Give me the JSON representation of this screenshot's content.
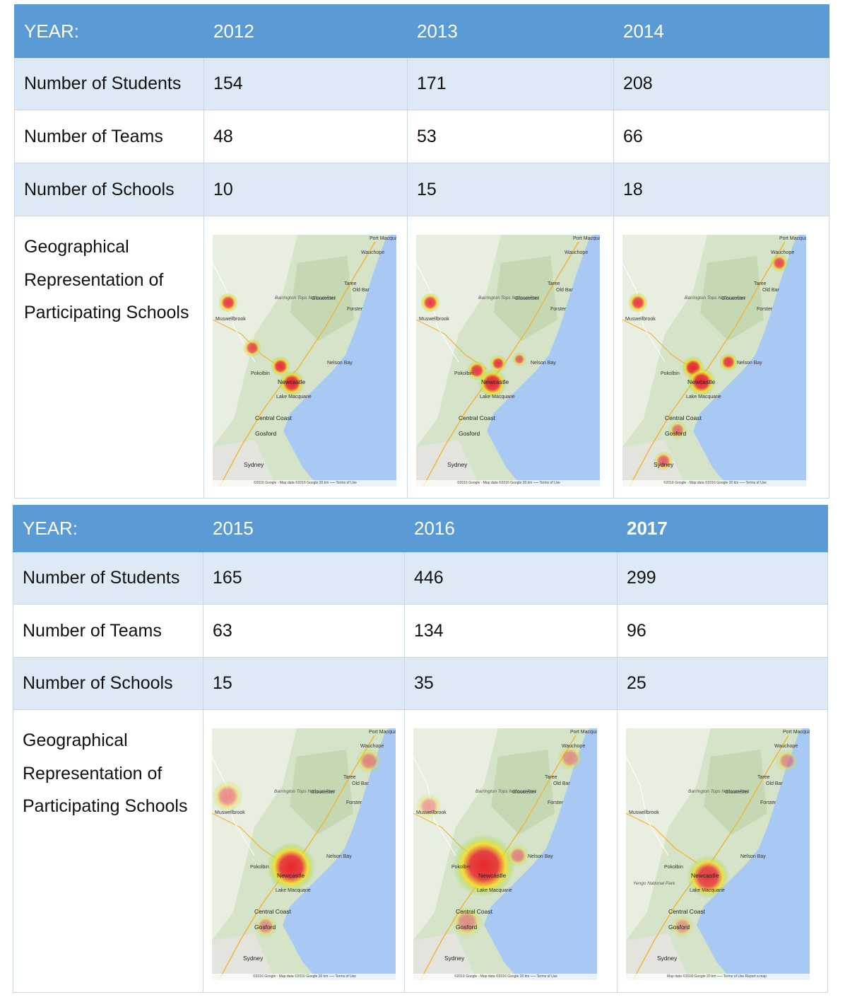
{
  "tables": [
    {
      "year_label": "YEAR:",
      "years": [
        "2012",
        "2013",
        "2014"
      ],
      "rows": [
        {
          "label": "Number of Students",
          "values": [
            "154",
            "171",
            "208"
          ]
        },
        {
          "label": "Number of Teams",
          "values": [
            "48",
            "53",
            "66"
          ]
        },
        {
          "label": "Number of Schools",
          "values": [
            "10",
            "15",
            "18"
          ]
        }
      ],
      "geo_label": "Geographical Representation of Participating Schools",
      "maps": [
        {
          "footer": "©2016 Google - Map data ©2016 Google   20 km ⎯⎯⎯   Terms of Use"
        },
        {
          "footer": "©2016 Google - Map data ©2016 Google   20 km ⎯⎯⎯   Terms of Use"
        },
        {
          "footer": "©2016 Google - Map data ©2016 Google   20 km ⎯⎯⎯   Terms of Use"
        }
      ]
    },
    {
      "year_label": "YEAR:",
      "years": [
        "2015",
        "2016",
        "2017"
      ],
      "rows": [
        {
          "label": "Number of Students",
          "values": [
            "165",
            "446",
            "299"
          ]
        },
        {
          "label": "Number of Teams",
          "values": [
            "63",
            "134",
            "96"
          ]
        },
        {
          "label": "Number of Schools",
          "values": [
            "15",
            "35",
            "25"
          ]
        }
      ],
      "geo_label": "Geographical Representation of Participating Schools",
      "maps": [
        {
          "footer": "©2016 Google - Map data ©2016 Google   20 km ⎯⎯⎯   Terms of Use"
        },
        {
          "footer": "©2016 Google - Map data ©2016 Google   20 km ⎯⎯⎯   Terms of Use"
        },
        {
          "footer": "Map data ©2018 Google   20 km ⎯⎯⎯   Terms of Use   Report a map"
        }
      ]
    }
  ],
  "map_labels": {
    "port_macquarie": "Port Macquarie",
    "wauchope": "Wauchope",
    "taree": "Taree",
    "old_bar": "Old Bar",
    "forster": "Forster",
    "gloucester": "Gloucester",
    "barrington": "Barrington Tops National Park",
    "muswellbrook": "Muswellbrook",
    "pokolbin": "Pokolbin",
    "nelson_bay": "Nelson Bay",
    "newcastle": "Newcastle",
    "lake_macquarie": "Lake Macquarie",
    "central_coast": "Central Coast",
    "gosford": "Gosford",
    "sydney": "Sydney",
    "yengo": "Yengo National Park"
  },
  "colors": {
    "header_bg": "#5b9bd5",
    "shade_bg": "#dde9f5",
    "heat_hot": "#e8262a",
    "heat_warm": "#f7e11a",
    "heat_cool": "#7fd64a"
  }
}
